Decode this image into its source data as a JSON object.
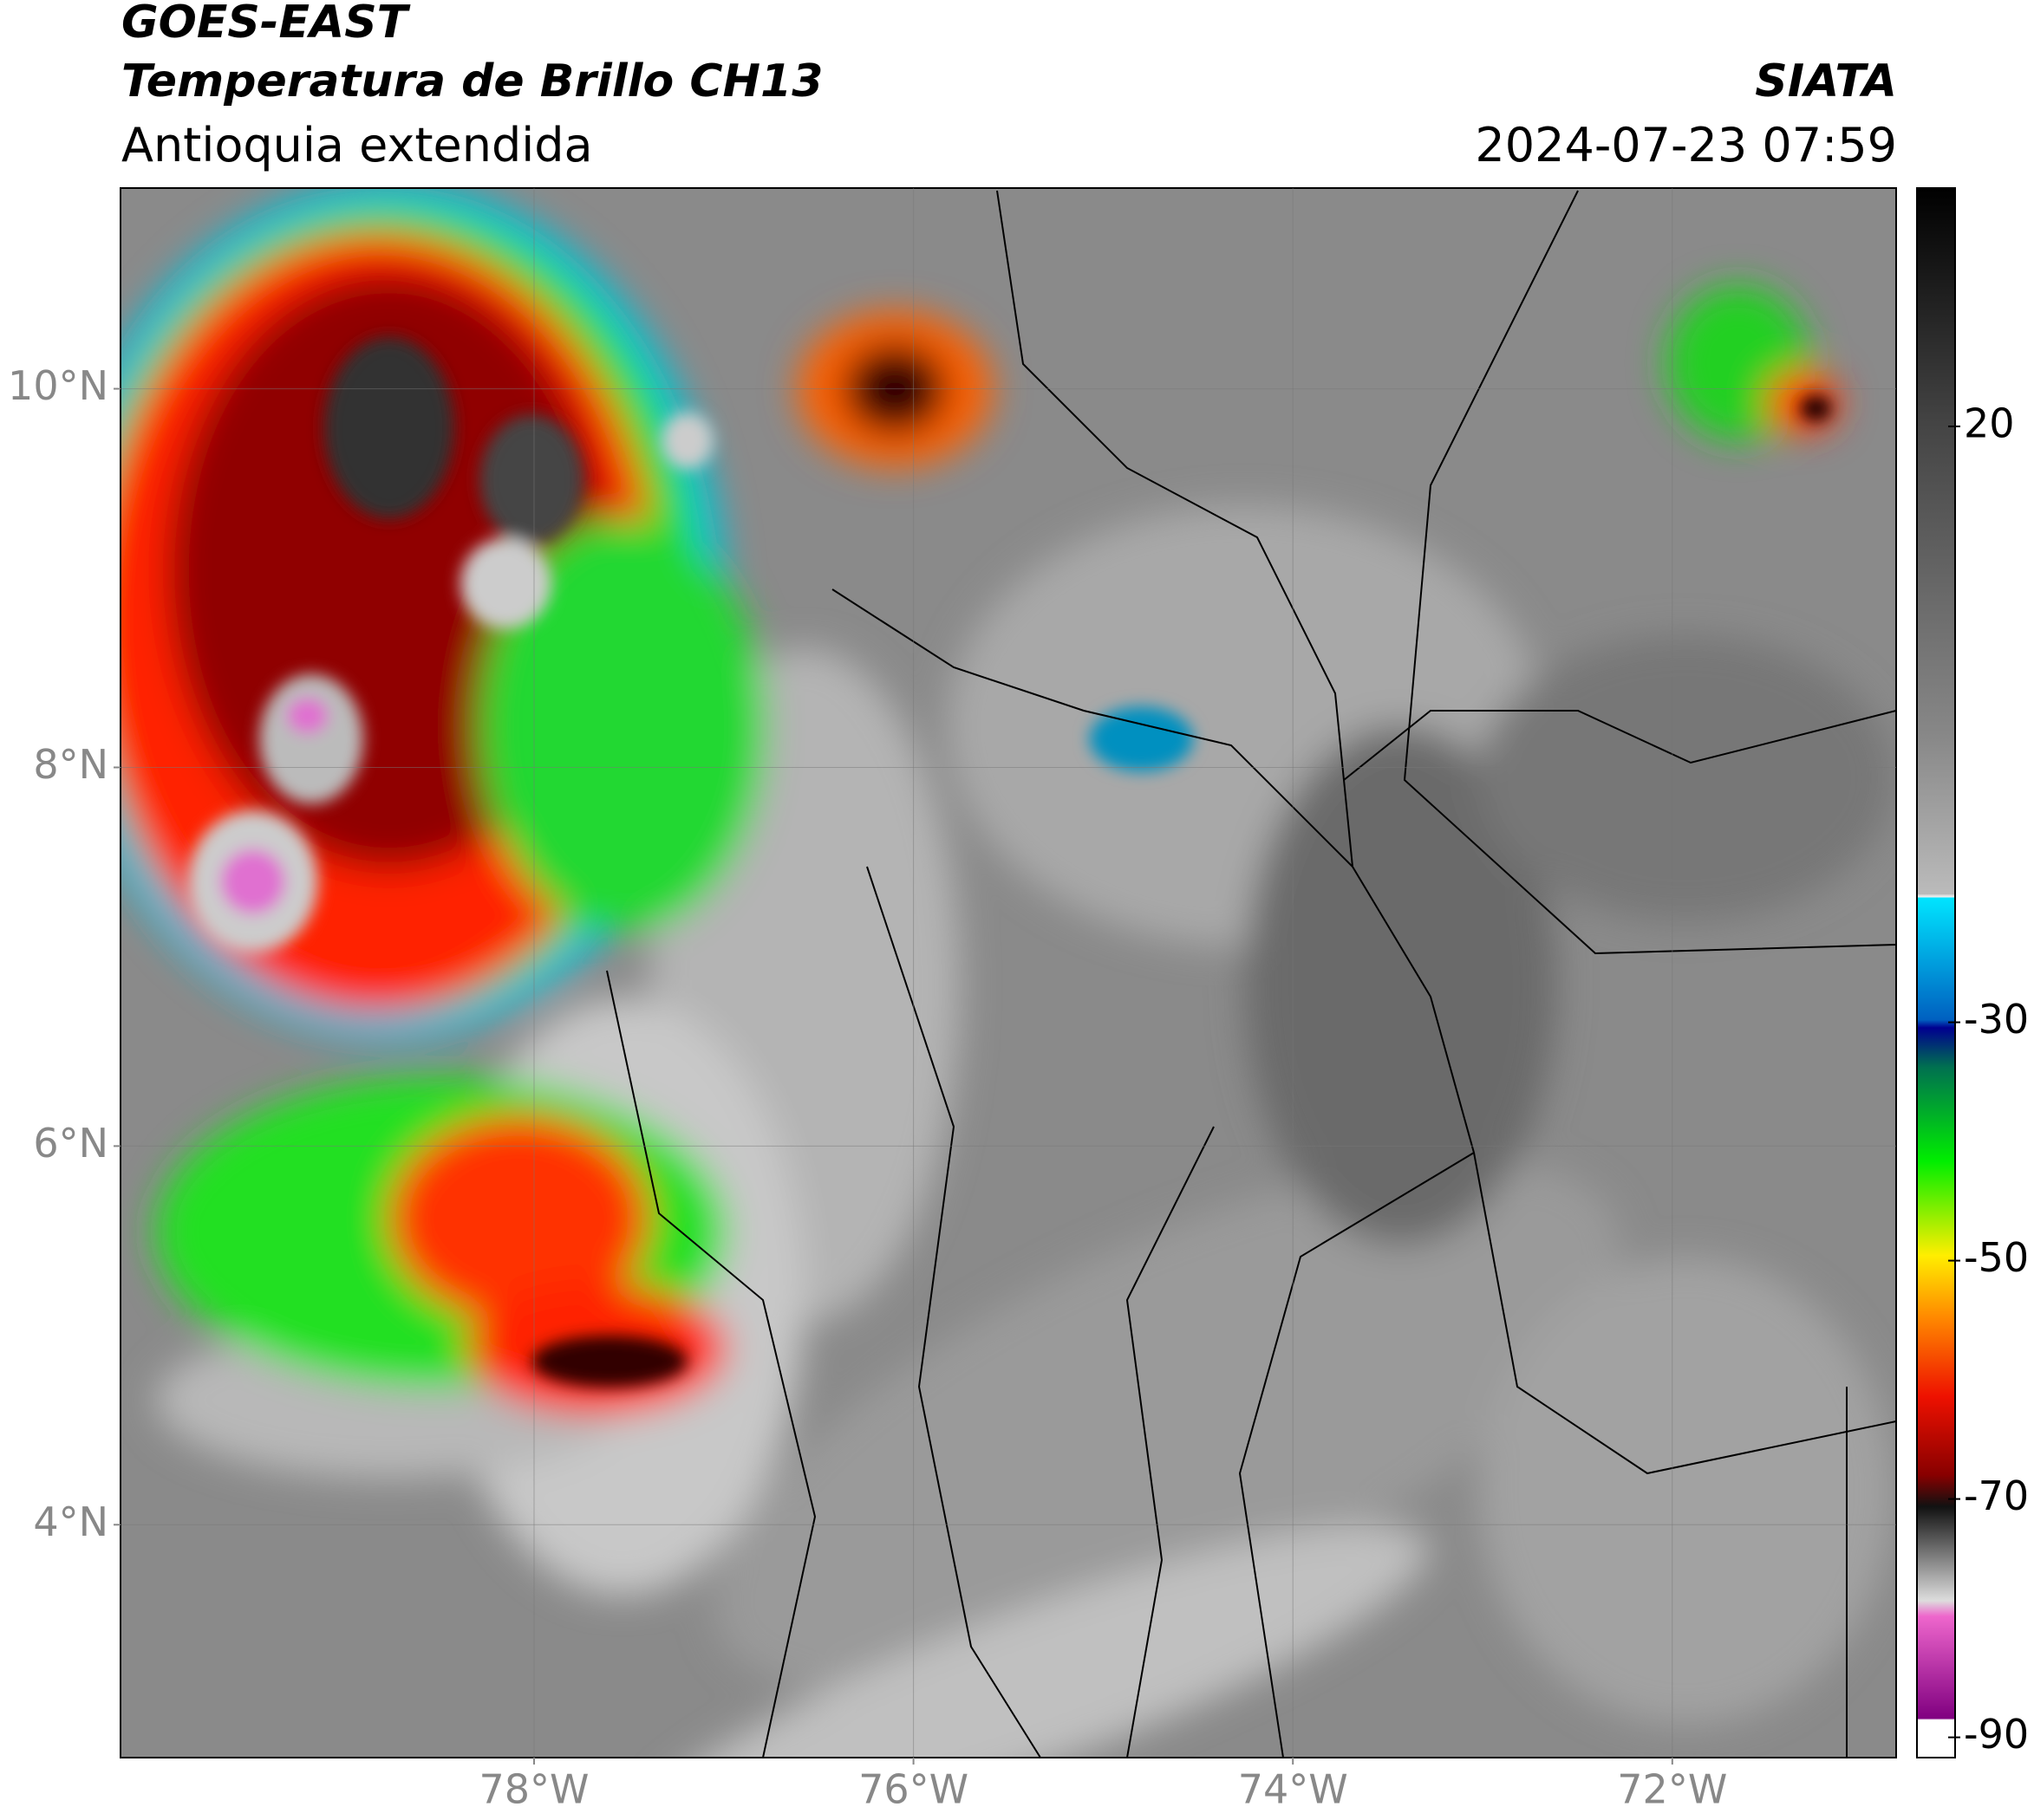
{
  "header": {
    "satellite": "GOES-EAST",
    "product": "Temperatura de Brillo CH13",
    "region": "Antioquia extendida",
    "agency": "SIATA",
    "datetime": "2024-07-23 07:59"
  },
  "chart_data": {
    "type": "map",
    "xlim": [
      -80.18,
      -70.82
    ],
    "ylim": [
      2.77,
      11.06
    ],
    "xticks": [
      {
        "value": -78,
        "label": "78°W"
      },
      {
        "value": -76,
        "label": "76°W"
      },
      {
        "value": -74,
        "label": "74°W"
      },
      {
        "value": -72,
        "label": "72°W"
      }
    ],
    "yticks": [
      {
        "value": 10,
        "label": "10°N"
      },
      {
        "value": 8,
        "label": "8°N"
      },
      {
        "value": 6,
        "label": "6°N"
      },
      {
        "value": 4,
        "label": "4°N"
      }
    ],
    "grid": true,
    "colorbar": {
      "lim": [
        -91.7,
        40
      ],
      "ticks": [
        20,
        -30,
        -50,
        -70,
        -90
      ]
    }
  }
}
